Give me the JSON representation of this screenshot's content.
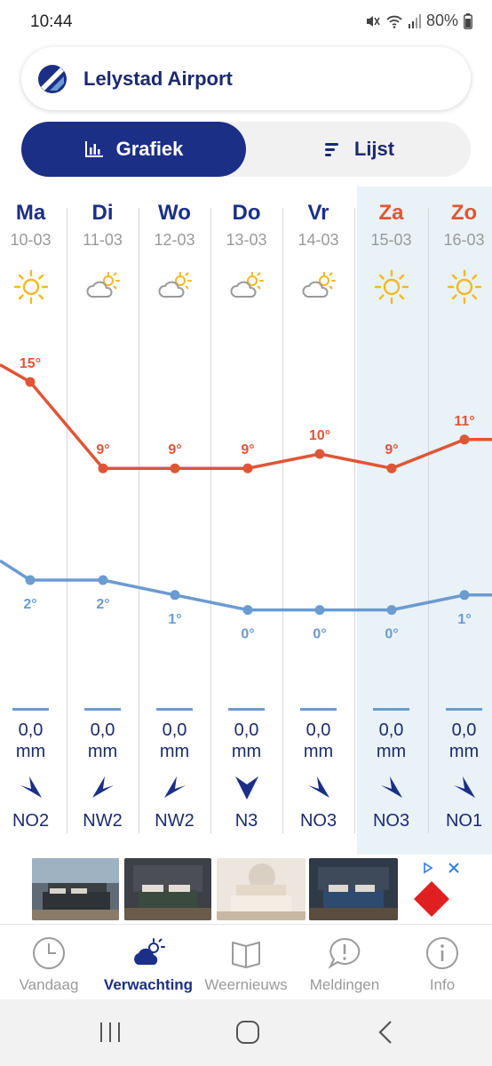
{
  "status": {
    "time": "10:44",
    "battery": "80%"
  },
  "location": {
    "name": "Lelystad Airport"
  },
  "view_toggle": {
    "graph_label": "Grafiek",
    "list_label": "Lijst",
    "active": "graph"
  },
  "days": [
    {
      "name": "Ma",
      "date": "10-03",
      "icon": "sun-icon",
      "weekend": false,
      "rain": "0,0",
      "unit": "mm",
      "wind": "NO2",
      "wind_direction": "NO"
    },
    {
      "name": "Di",
      "date": "11-03",
      "icon": "partly-cloudy-icon",
      "weekend": false,
      "rain": "0,0",
      "unit": "mm",
      "wind": "NW2",
      "wind_direction": "NW"
    },
    {
      "name": "Wo",
      "date": "12-03",
      "icon": "partly-cloudy-icon",
      "weekend": false,
      "rain": "0,0",
      "unit": "mm",
      "wind": "NW2",
      "wind_direction": "NW"
    },
    {
      "name": "Do",
      "date": "13-03",
      "icon": "partly-cloudy-icon",
      "weekend": false,
      "rain": "0,0",
      "unit": "mm",
      "wind": "N3",
      "wind_direction": "N"
    },
    {
      "name": "Vr",
      "date": "14-03",
      "icon": "partly-cloudy-icon",
      "weekend": false,
      "rain": "0,0",
      "unit": "mm",
      "wind": "NO3",
      "wind_direction": "NO"
    },
    {
      "name": "Za",
      "date": "15-03",
      "icon": "sun-icon",
      "weekend": true,
      "rain": "0,0",
      "unit": "mm",
      "wind": "NO3",
      "wind_direction": "NO"
    },
    {
      "name": "Zo",
      "date": "16-03",
      "icon": "sun-icon",
      "weekend": true,
      "rain": "0,0",
      "unit": "mm",
      "wind": "NO1",
      "wind_direction": "NO"
    }
  ],
  "chart_data": {
    "type": "line",
    "categories": [
      "Ma",
      "Di",
      "Wo",
      "Do",
      "Vr",
      "Za",
      "Zo"
    ],
    "series": [
      {
        "values": [
          15,
          9,
          9,
          9,
          10,
          9,
          11
        ],
        "labels": [
          "15°",
          "9°",
          "9°",
          "9°",
          "10°",
          "9°",
          "11°"
        ],
        "color": "#e05535"
      },
      {
        "values": [
          2,
          2,
          1,
          0,
          0,
          0,
          1
        ],
        "labels": [
          "2°",
          "2°",
          "1°",
          "0°",
          "0°",
          "0°",
          "1°"
        ],
        "color": "#6a9bd1"
      }
    ],
    "grid": false
  },
  "ad": {
    "brand_colors": [
      "#e02020",
      "#2b7de9"
    ]
  },
  "nav": [
    {
      "label": "Vandaag",
      "icon": "clock-icon",
      "active": false
    },
    {
      "label": "Verwachting",
      "icon": "weather-cloud-icon",
      "active": true
    },
    {
      "label": "Weernieuws",
      "icon": "book-icon",
      "active": false
    },
    {
      "label": "Meldingen",
      "icon": "alert-bubble-icon",
      "active": false
    },
    {
      "label": "Info",
      "icon": "info-icon",
      "active": false
    }
  ],
  "colors": {
    "primary": "#1c2f86",
    "max_temp": "#e05535",
    "min_temp": "#6a9bd1",
    "weekend_bg": "#e9f2f7"
  }
}
